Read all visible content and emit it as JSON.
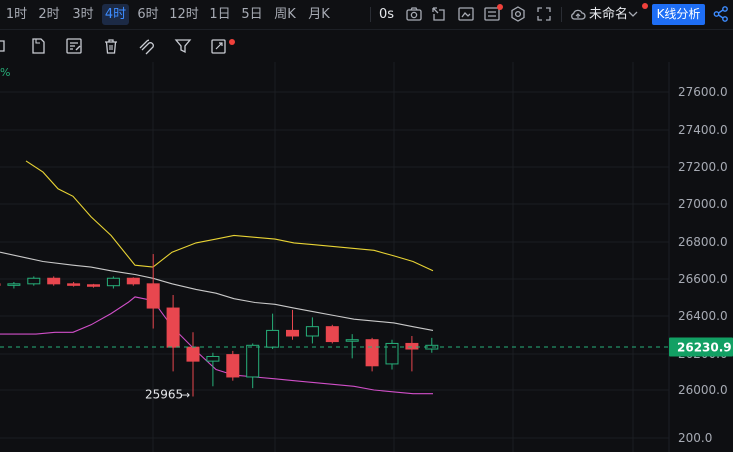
{
  "toolbar": {
    "intervals": [
      "1时",
      "2时",
      "3时",
      "4时",
      "6时",
      "12时",
      "1日",
      "5日",
      "周K",
      "月K"
    ],
    "active_interval": "4时",
    "seconds_label": "0s",
    "layout_name": "未命名",
    "kline_button": "K线分析",
    "icons": [
      "camera-icon",
      "popout-icon",
      "image-icon",
      "settings-icon",
      "fullscreen-icon",
      "cloud-icon",
      "share-icon"
    ]
  },
  "drawing_tools": {
    "icons": [
      "indicator-icon",
      "copy-icon",
      "edit-list-icon",
      "trash-icon",
      "magnet-icon",
      "filter-icon",
      "replay-icon"
    ]
  },
  "chart_data": {
    "type": "candlestick",
    "percent_marker": "%",
    "y_axis_labels": [
      "27600.0",
      "27400.0",
      "27200.0",
      "27000.0",
      "26800.0",
      "26600.0",
      "26400.0",
      "26200.0",
      "26000.0",
      "200.0"
    ],
    "last_price": "26230.9",
    "min_marker": "25965",
    "min_arrow": "→",
    "candles": [
      {
        "o": 26570,
        "h": 26580,
        "l": 26555,
        "c": 26565
      },
      {
        "o": 26565,
        "h": 26580,
        "l": 26545,
        "c": 26570
      },
      {
        "o": 26570,
        "h": 26610,
        "l": 26560,
        "c": 26600
      },
      {
        "o": 26600,
        "h": 26610,
        "l": 26560,
        "c": 26570
      },
      {
        "o": 26570,
        "h": 26580,
        "l": 26555,
        "c": 26565
      },
      {
        "o": 26565,
        "h": 26570,
        "l": 26550,
        "c": 26560
      },
      {
        "o": 26560,
        "h": 26610,
        "l": 26545,
        "c": 26600
      },
      {
        "o": 26600,
        "h": 26605,
        "l": 26560,
        "c": 26570
      },
      {
        "o": 26570,
        "h": 26730,
        "l": 26330,
        "c": 26440
      },
      {
        "o": 26440,
        "h": 26510,
        "l": 26100,
        "c": 26230
      },
      {
        "o": 26230,
        "h": 26310,
        "l": 25965,
        "c": 26155
      },
      {
        "o": 26155,
        "h": 26200,
        "l": 26020,
        "c": 26180
      },
      {
        "o": 26190,
        "h": 26210,
        "l": 26050,
        "c": 26070
      },
      {
        "o": 26070,
        "h": 26250,
        "l": 26010,
        "c": 26240
      },
      {
        "o": 26230,
        "h": 26410,
        "l": 26220,
        "c": 26320
      },
      {
        "o": 26320,
        "h": 26430,
        "l": 26270,
        "c": 26290
      },
      {
        "o": 26290,
        "h": 26390,
        "l": 26250,
        "c": 26340
      },
      {
        "o": 26340,
        "h": 26350,
        "l": 26250,
        "c": 26260
      },
      {
        "o": 26270,
        "h": 26300,
        "l": 26170,
        "c": 26270
      },
      {
        "o": 26270,
        "h": 26280,
        "l": 26100,
        "c": 26130
      },
      {
        "o": 26140,
        "h": 26270,
        "l": 26110,
        "c": 26250
      },
      {
        "o": 26250,
        "h": 26290,
        "l": 26100,
        "c": 26220
      },
      {
        "o": 26220,
        "h": 26280,
        "l": 26200,
        "c": 26240
      }
    ],
    "lines": [
      {
        "color": "#e8d334",
        "points": [
          [
            26,
            27230
          ],
          [
            43,
            27170
          ],
          [
            58,
            27080
          ],
          [
            73,
            27040
          ],
          [
            91,
            26930
          ],
          [
            111,
            26830
          ],
          [
            135,
            26670
          ],
          [
            153,
            26660
          ],
          [
            172,
            26740
          ],
          [
            196,
            26790
          ],
          [
            216,
            26810
          ],
          [
            234,
            26830
          ],
          [
            255,
            26820
          ],
          [
            275,
            26810
          ],
          [
            294,
            26790
          ],
          [
            314,
            26780
          ],
          [
            334,
            26770
          ],
          [
            354,
            26760
          ],
          [
            374,
            26750
          ],
          [
            394,
            26720
          ],
          [
            413,
            26690
          ],
          [
            433,
            26640
          ]
        ]
      },
      {
        "color": "#c9c9c9",
        "points": [
          [
            0,
            26740
          ],
          [
            26,
            26710
          ],
          [
            43,
            26690
          ],
          [
            73,
            26670
          ],
          [
            91,
            26660
          ],
          [
            111,
            26640
          ],
          [
            135,
            26620
          ],
          [
            153,
            26600
          ],
          [
            172,
            26570
          ],
          [
            196,
            26540
          ],
          [
            216,
            26520
          ],
          [
            234,
            26490
          ],
          [
            255,
            26470
          ],
          [
            275,
            26460
          ],
          [
            294,
            26440
          ],
          [
            314,
            26420
          ],
          [
            334,
            26400
          ],
          [
            354,
            26380
          ],
          [
            374,
            26370
          ],
          [
            394,
            26360
          ],
          [
            413,
            26340
          ],
          [
            433,
            26320
          ]
        ]
      },
      {
        "color": "#d04fc8",
        "points": [
          [
            0,
            26300
          ],
          [
            36,
            26300
          ],
          [
            55,
            26310
          ],
          [
            73,
            26310
          ],
          [
            91,
            26350
          ],
          [
            111,
            26410
          ],
          [
            128,
            26470
          ],
          [
            135,
            26500
          ],
          [
            153,
            26480
          ],
          [
            172,
            26340
          ],
          [
            196,
            26210
          ],
          [
            216,
            26110
          ],
          [
            234,
            26080
          ],
          [
            255,
            26070
          ],
          [
            275,
            26060
          ],
          [
            294,
            26050
          ],
          [
            314,
            26040
          ],
          [
            334,
            26030
          ],
          [
            354,
            26020
          ],
          [
            374,
            26000
          ],
          [
            394,
            25990
          ],
          [
            413,
            25980
          ],
          [
            433,
            25980
          ]
        ]
      }
    ]
  }
}
